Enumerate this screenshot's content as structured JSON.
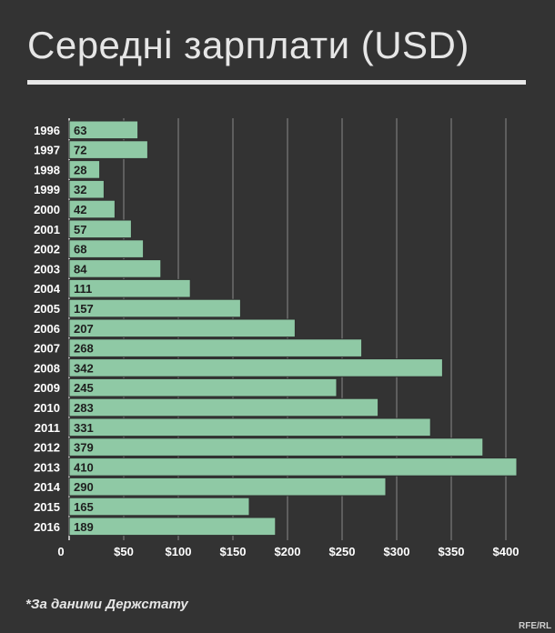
{
  "chart_data": {
    "type": "bar",
    "orientation": "horizontal",
    "title": "Середні зарплати (USD)",
    "categories": [
      "1996",
      "1997",
      "1998",
      "1999",
      "2000",
      "2001",
      "2002",
      "2003",
      "2004",
      "2005",
      "2006",
      "2007",
      "2008",
      "2009",
      "2010",
      "2011",
      "2012",
      "2013",
      "2014",
      "2015",
      "2016"
    ],
    "values": [
      63,
      72,
      28,
      32,
      42,
      57,
      68,
      84,
      111,
      157,
      207,
      268,
      342,
      245,
      283,
      331,
      379,
      410,
      290,
      165,
      189
    ],
    "xlim": [
      0,
      420
    ],
    "xticks": [
      0,
      50,
      100,
      150,
      200,
      250,
      300,
      350,
      400
    ],
    "xtick_labels": [
      "0",
      "$50",
      "$100",
      "$150",
      "$200",
      "$250",
      "$300",
      "$350",
      "$400"
    ],
    "grid": "vertical",
    "bar_color": "#8fc9a5",
    "bar_border_color": "#2f2f2f",
    "grid_color": "#8a8a8a",
    "label_color": "#ffffff",
    "value_label_color": "#1e1e1e"
  },
  "footer": {
    "source": "*За даними Держстату",
    "credit": "RFE/RL"
  }
}
